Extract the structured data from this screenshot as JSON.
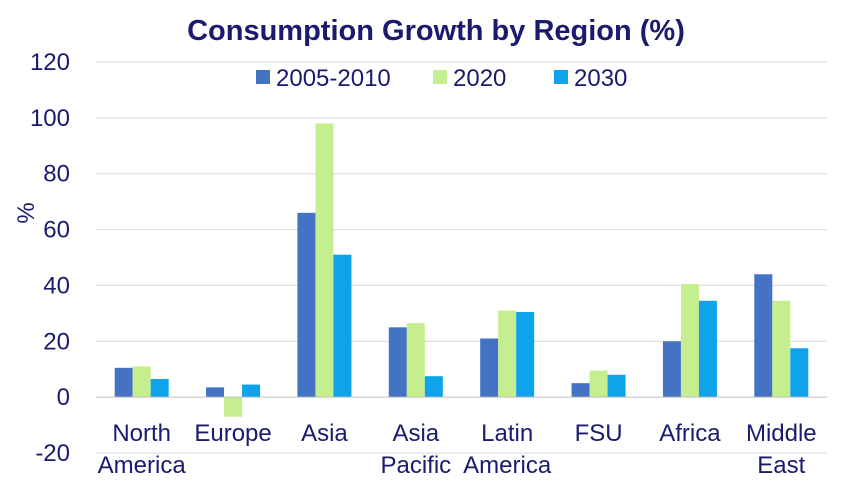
{
  "chart_data": {
    "type": "bar",
    "title": "Consumption Growth by Region (%)",
    "xlabel": "",
    "ylabel": "%",
    "ylim": [
      -20,
      120
    ],
    "yticks": [
      -20,
      0,
      20,
      40,
      60,
      80,
      100,
      120
    ],
    "grid": true,
    "legend_position": "top",
    "categories": [
      [
        "North",
        "America"
      ],
      [
        "Europe"
      ],
      [
        "Asia"
      ],
      [
        "Asia",
        "Pacific"
      ],
      [
        "Latin",
        "America"
      ],
      [
        "FSU"
      ],
      [
        "Africa"
      ],
      [
        "Middle",
        "East"
      ]
    ],
    "series": [
      {
        "name": "2005-2010",
        "color": "#4472c4",
        "values": [
          10.5,
          3.5,
          66,
          25,
          21,
          5,
          20,
          44
        ]
      },
      {
        "name": "2020",
        "color": "#c5ef8e",
        "values": [
          11,
          -7,
          98,
          26.5,
          31,
          9.5,
          40.5,
          34.5
        ]
      },
      {
        "name": "2030",
        "color": "#0fa3ec",
        "values": [
          6.5,
          4.5,
          51,
          7.5,
          30.5,
          8,
          34.5,
          17.5
        ]
      }
    ]
  }
}
